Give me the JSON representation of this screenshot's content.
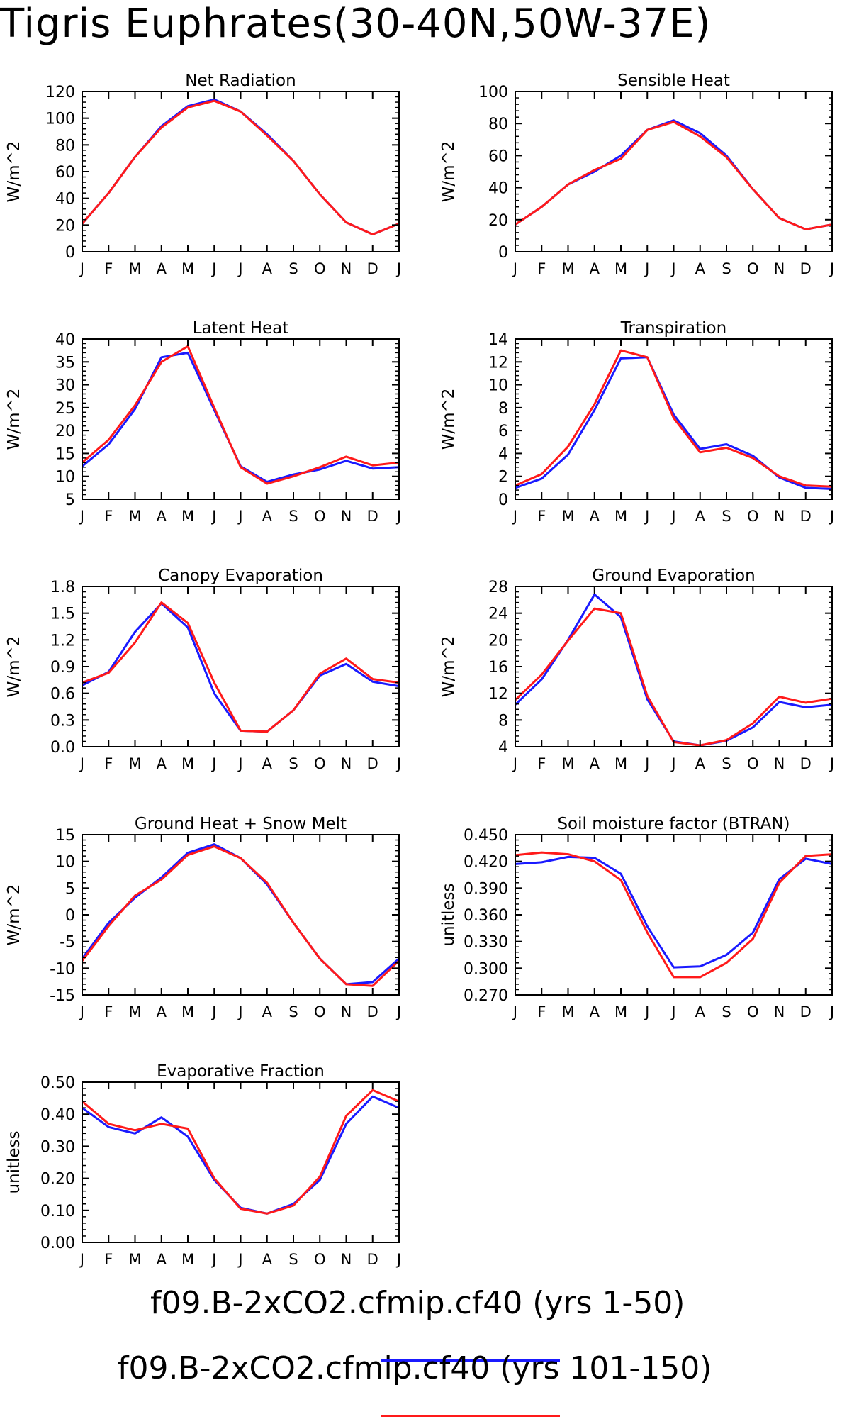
{
  "title": "Tigris Euphrates(30-40N,50W-37E)",
  "colors": {
    "series_a": "#1a1aff",
    "series_b": "#ff1a1a"
  },
  "legend": [
    {
      "label": "f09.B-2xCO2.cfmip.cf40 (yrs 1-50)",
      "color": "#1a1aff"
    },
    {
      "label": "f09.B-2xCO2.cfmip.cf40 (yrs 101-150)",
      "color": "#ff1a1a"
    }
  ],
  "chart_data": [
    {
      "type": "line",
      "title": "Net Radiation",
      "ylabel": "W/m^2",
      "categories": [
        "J",
        "F",
        "M",
        "A",
        "M",
        "J",
        "J",
        "A",
        "S",
        "O",
        "N",
        "D",
        "J"
      ],
      "ylim": [
        0,
        120
      ],
      "yticks": [
        "0",
        "20",
        "40",
        "60",
        "80",
        "100",
        "120"
      ],
      "series": [
        {
          "color": "#1a1aff",
          "values": [
            21,
            44,
            71,
            94,
            109,
            114,
            105,
            88,
            68,
            43,
            22,
            13,
            21
          ]
        },
        {
          "color": "#ff1a1a",
          "values": [
            21,
            44,
            71,
            93,
            108,
            113,
            105,
            87,
            68,
            43,
            22,
            13,
            21
          ]
        }
      ]
    },
    {
      "type": "line",
      "title": "Sensible Heat",
      "ylabel": "W/m^2",
      "categories": [
        "J",
        "F",
        "M",
        "A",
        "M",
        "J",
        "J",
        "A",
        "S",
        "O",
        "N",
        "D",
        "J"
      ],
      "ylim": [
        0,
        100
      ],
      "yticks": [
        "0",
        "20",
        "40",
        "60",
        "80",
        "100"
      ],
      "series": [
        {
          "color": "#1a1aff",
          "values": [
            17,
            28,
            42,
            50,
            60,
            76,
            82,
            74,
            60,
            39,
            21,
            14,
            17
          ]
        },
        {
          "color": "#ff1a1a",
          "values": [
            17,
            28,
            42,
            51,
            58,
            76,
            81,
            72,
            59,
            39,
            21,
            14,
            17
          ]
        }
      ]
    },
    {
      "type": "line",
      "title": "Latent Heat",
      "ylabel": "W/m^2",
      "categories": [
        "J",
        "F",
        "M",
        "A",
        "M",
        "J",
        "J",
        "A",
        "S",
        "O",
        "N",
        "D",
        "J"
      ],
      "ylim": [
        5,
        40
      ],
      "yticks": [
        "5",
        "10",
        "15",
        "20",
        "25",
        "30",
        "35",
        "40"
      ],
      "series": [
        {
          "color": "#1a1aff",
          "values": [
            12.2,
            17,
            24.7,
            36,
            37,
            24.5,
            12.2,
            8.8,
            10.4,
            11.5,
            13.4,
            11.7,
            12
          ]
        },
        {
          "color": "#ff1a1a",
          "values": [
            13,
            18,
            25.5,
            35,
            38.4,
            25,
            12,
            8.4,
            10,
            12,
            14.3,
            12.4,
            13
          ]
        }
      ]
    },
    {
      "type": "line",
      "title": "Transpiration",
      "ylabel": "W/m^2",
      "categories": [
        "J",
        "F",
        "M",
        "A",
        "M",
        "J",
        "J",
        "A",
        "S",
        "O",
        "N",
        "D",
        "J"
      ],
      "ylim": [
        0,
        14
      ],
      "yticks": [
        "0",
        "2",
        "4",
        "6",
        "8",
        "10",
        "12",
        "14"
      ],
      "series": [
        {
          "color": "#1a1aff",
          "values": [
            1,
            1.8,
            3.9,
            7.8,
            12.3,
            12.4,
            7.4,
            4.4,
            4.8,
            3.8,
            1.9,
            1,
            0.9
          ]
        },
        {
          "color": "#ff1a1a",
          "values": [
            1.2,
            2.2,
            4.6,
            8.3,
            13,
            12.4,
            7.1,
            4.1,
            4.5,
            3.6,
            2,
            1.2,
            1.1
          ]
        }
      ]
    },
    {
      "type": "line",
      "title": "Canopy Evaporation",
      "ylabel": "W/m^2",
      "categories": [
        "J",
        "F",
        "M",
        "A",
        "M",
        "J",
        "J",
        "A",
        "S",
        "O",
        "N",
        "D",
        "J"
      ],
      "ylim": [
        0,
        1.8
      ],
      "yticks": [
        "0.0",
        "0.3",
        "0.6",
        "0.9",
        "1.2",
        "1.5",
        "1.8"
      ],
      "series": [
        {
          "color": "#1a1aff",
          "values": [
            0.69,
            0.84,
            1.29,
            1.61,
            1.34,
            0.6,
            0.18,
            0.17,
            0.41,
            0.8,
            0.93,
            0.73,
            0.68
          ]
        },
        {
          "color": "#ff1a1a",
          "values": [
            0.72,
            0.83,
            1.17,
            1.62,
            1.39,
            0.72,
            0.18,
            0.17,
            0.41,
            0.82,
            0.99,
            0.76,
            0.72
          ]
        }
      ]
    },
    {
      "type": "line",
      "title": "Ground Evaporation",
      "ylabel": "W/m^2",
      "categories": [
        "J",
        "F",
        "M",
        "A",
        "M",
        "J",
        "J",
        "A",
        "S",
        "O",
        "N",
        "D",
        "J"
      ],
      "ylim": [
        4,
        28
      ],
      "yticks": [
        "4",
        "8",
        "12",
        "16",
        "20",
        "24",
        "28"
      ],
      "series": [
        {
          "color": "#1a1aff",
          "values": [
            10.3,
            14.1,
            20,
            26.8,
            23.4,
            11.1,
            4.8,
            4.2,
            4.9,
            6.9,
            10.7,
            9.9,
            10.3
          ]
        },
        {
          "color": "#ff1a1a",
          "values": [
            11,
            14.8,
            19.9,
            24.7,
            24,
            11.6,
            4.7,
            4.2,
            5,
            7.5,
            11.5,
            10.6,
            11.2
          ]
        }
      ]
    },
    {
      "type": "line",
      "title": "Ground Heat + Snow Melt",
      "ylabel": "W/m^2",
      "categories": [
        "J",
        "F",
        "M",
        "A",
        "M",
        "J",
        "J",
        "A",
        "S",
        "O",
        "N",
        "D",
        "J"
      ],
      "ylim": [
        -15,
        15
      ],
      "yticks": [
        "-15",
        "-10",
        "-5",
        "0",
        "5",
        "10",
        "15"
      ],
      "series": [
        {
          "color": "#1a1aff",
          "values": [
            -8.2,
            -1.5,
            3.2,
            7,
            11.6,
            13.2,
            10.6,
            5.7,
            -1.5,
            -8.2,
            -13,
            -12.6,
            -8.2
          ]
        },
        {
          "color": "#ff1a1a",
          "values": [
            -8.6,
            -2.1,
            3.6,
            6.6,
            11.2,
            12.8,
            10.6,
            6,
            -1.5,
            -8.2,
            -13,
            -13.3,
            -8.6
          ]
        }
      ]
    },
    {
      "type": "line",
      "title": "Soil moisture factor (BTRAN)",
      "ylabel": "unitless",
      "categories": [
        "J",
        "F",
        "M",
        "A",
        "M",
        "J",
        "J",
        "A",
        "S",
        "O",
        "N",
        "D",
        "J"
      ],
      "ylim": [
        0.27,
        0.45
      ],
      "yticks": [
        "0.270",
        "0.300",
        "0.330",
        "0.360",
        "0.390",
        "0.420",
        "0.450"
      ],
      "series": [
        {
          "color": "#1a1aff",
          "values": [
            0.417,
            0.419,
            0.425,
            0.424,
            0.406,
            0.347,
            0.301,
            0.302,
            0.315,
            0.34,
            0.4,
            0.423,
            0.417
          ]
        },
        {
          "color": "#ff1a1a",
          "values": [
            0.427,
            0.43,
            0.428,
            0.42,
            0.399,
            0.34,
            0.29,
            0.29,
            0.306,
            0.333,
            0.396,
            0.426,
            0.428
          ]
        }
      ]
    },
    {
      "type": "line",
      "title": "Evaporative Fraction",
      "ylabel": "unitless",
      "categories": [
        "J",
        "F",
        "M",
        "A",
        "M",
        "J",
        "J",
        "A",
        "S",
        "O",
        "N",
        "D",
        "J"
      ],
      "ylim": [
        0,
        0.5
      ],
      "yticks": [
        "0.00",
        "0.10",
        "0.20",
        "0.30",
        "0.40",
        "0.50"
      ],
      "series": [
        {
          "color": "#1a1aff",
          "values": [
            0.42,
            0.36,
            0.34,
            0.39,
            0.33,
            0.195,
            0.108,
            0.09,
            0.12,
            0.195,
            0.37,
            0.455,
            0.42
          ]
        },
        {
          "color": "#ff1a1a",
          "values": [
            0.44,
            0.37,
            0.35,
            0.37,
            0.355,
            0.2,
            0.105,
            0.09,
            0.115,
            0.205,
            0.395,
            0.475,
            0.44
          ]
        }
      ]
    }
  ]
}
